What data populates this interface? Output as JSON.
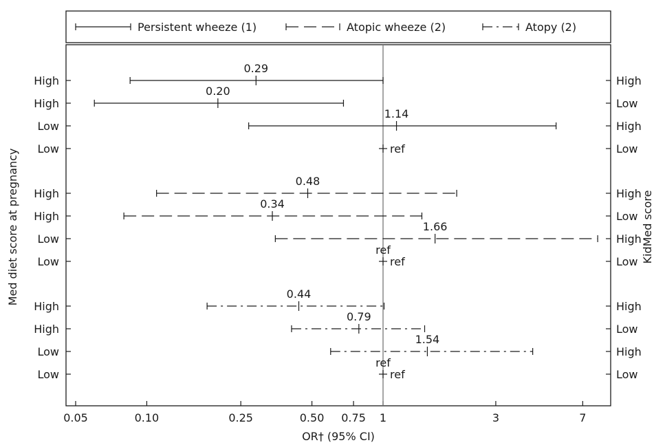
{
  "chart_data": {
    "type": "forest",
    "xscale": "log",
    "xlim": [
      0.045,
      9
    ],
    "xlabel": "OR† (95% CI)",
    "ylabel_left": "Med diet score at pregnancy",
    "ylabel_right": "KidMed score",
    "xticks": [
      0.05,
      0.1,
      0.25,
      0.5,
      0.75,
      1,
      3,
      7
    ],
    "xtick_labels": [
      "0.05",
      "0.10",
      "0.25",
      "0.50",
      "0.75",
      "1",
      "3",
      "7"
    ],
    "reference_line": 1,
    "legend_position": "top",
    "series": [
      {
        "name": "Persistent wheeze (1)",
        "dash": "solid",
        "rows": [
          {
            "left": "High",
            "right": "High",
            "or": 0.29,
            "lo": 0.085,
            "hi": 1.0,
            "label": "0.29"
          },
          {
            "left": "High",
            "right": "Low",
            "or": 0.2,
            "lo": 0.06,
            "hi": 0.68,
            "label": "0.20"
          },
          {
            "left": "Low",
            "right": "High",
            "or": 1.14,
            "lo": 0.27,
            "hi": 5.4,
            "label": "1.14"
          },
          {
            "left": "Low",
            "right": "Low",
            "or": 1,
            "ref": true,
            "label": "ref"
          }
        ]
      },
      {
        "name": "Atopic wheeze (2)",
        "dash": "dashed",
        "rows": [
          {
            "left": "High",
            "right": "High",
            "or": 0.48,
            "lo": 0.11,
            "hi": 2.05,
            "label": "0.48"
          },
          {
            "left": "High",
            "right": "Low",
            "or": 0.34,
            "lo": 0.08,
            "hi": 1.46,
            "label": "0.34"
          },
          {
            "left": "Low",
            "right": "High",
            "or": 1.66,
            "lo": 0.35,
            "hi": 8.1,
            "label": "1.66"
          },
          {
            "left": "Low",
            "right": "Low",
            "or": 1,
            "ref": true,
            "label": "ref",
            "extra_label": "ref"
          }
        ]
      },
      {
        "name": "Atopy (2)",
        "dash": "dashdot",
        "rows": [
          {
            "left": "High",
            "right": "High",
            "or": 0.44,
            "lo": 0.18,
            "hi": 1.01,
            "label": "0.44"
          },
          {
            "left": "High",
            "right": "Low",
            "or": 0.79,
            "lo": 0.41,
            "hi": 1.5,
            "label": "0.79"
          },
          {
            "left": "Low",
            "right": "High",
            "or": 1.54,
            "lo": 0.6,
            "hi": 4.3,
            "label": "1.54"
          },
          {
            "left": "Low",
            "right": "Low",
            "or": 1,
            "ref": true,
            "label": "ref",
            "extra_label": "ref"
          }
        ]
      }
    ]
  }
}
